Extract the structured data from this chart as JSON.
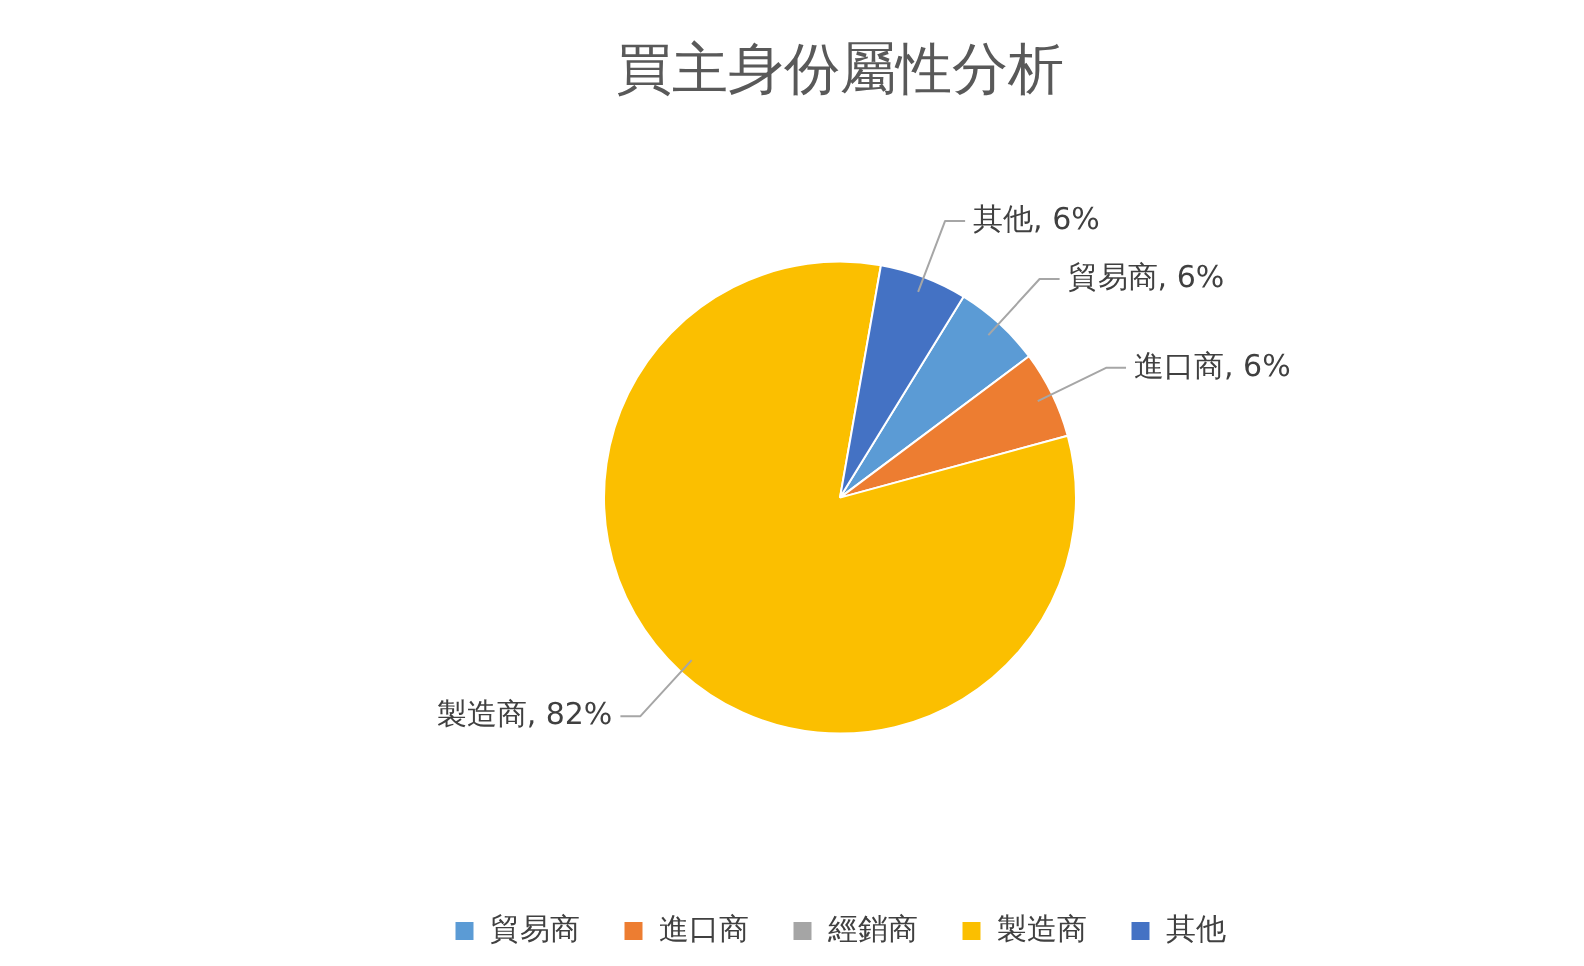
{
  "chart_data": {
    "type": "pie",
    "title": "買主身份屬性分析",
    "categories": [
      "貿易商",
      "進口商",
      "經銷商",
      "製造商",
      "其他"
    ],
    "values": [
      6,
      6,
      0,
      82,
      6
    ],
    "colors": [
      "#5b9bd5",
      "#ed7d31",
      "#a5a5a5",
      "#fbbf00",
      "#4472c4"
    ],
    "value_labels": [
      "貿易商, 6%",
      "進口商, 6%",
      null,
      "製造商, 82%",
      "其他, 6%"
    ],
    "legend": "bottom"
  }
}
